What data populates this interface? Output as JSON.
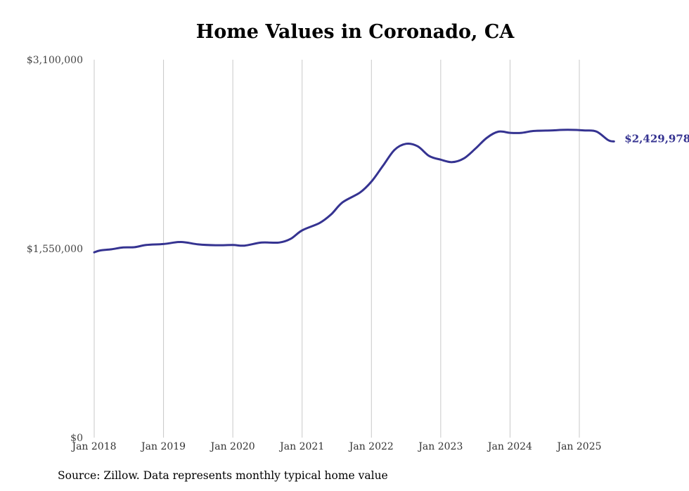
{
  "title": "Home Values in Coronado, CA",
  "source": "Source: Zillow. Data represents monthly typical home value",
  "colors": {
    "line": "#353391",
    "grid": "#c8c8c8",
    "end_label": "#353391"
  },
  "chart_data": {
    "type": "line",
    "title": "Home Values in Coronado, CA",
    "xlabel": "",
    "ylabel": "",
    "ylim": [
      0,
      3100000
    ],
    "y_ticks": [
      0,
      1550000,
      3100000
    ],
    "y_tick_labels": [
      "$0",
      "$1,550,000",
      "$3,100,000"
    ],
    "x_tick_labels": [
      "Jan 2018",
      "Jan 2019",
      "Jan 2020",
      "Jan 2021",
      "Jan 2022",
      "Jan 2023",
      "Jan 2024",
      "Jan 2025"
    ],
    "grid": "vertical",
    "legend": "none",
    "end_label": "$2,429,978",
    "series": [
      {
        "points": [
          [
            "2018-01",
            1520000
          ],
          [
            "2018-02",
            1535000
          ],
          [
            "2018-04",
            1545000
          ],
          [
            "2018-06",
            1560000
          ],
          [
            "2018-08",
            1562000
          ],
          [
            "2018-10",
            1580000
          ],
          [
            "2019-01",
            1588000
          ],
          [
            "2019-04",
            1605000
          ],
          [
            "2019-07",
            1585000
          ],
          [
            "2019-10",
            1578000
          ],
          [
            "2020-01",
            1580000
          ],
          [
            "2020-03",
            1575000
          ],
          [
            "2020-06",
            1600000
          ],
          [
            "2020-09",
            1600000
          ],
          [
            "2020-11",
            1630000
          ],
          [
            "2021-01",
            1700000
          ],
          [
            "2021-04",
            1760000
          ],
          [
            "2021-06",
            1830000
          ],
          [
            "2021-08",
            1930000
          ],
          [
            "2021-11",
            2010000
          ],
          [
            "2022-01",
            2100000
          ],
          [
            "2022-03",
            2230000
          ],
          [
            "2022-05",
            2360000
          ],
          [
            "2022-07",
            2410000
          ],
          [
            "2022-09",
            2390000
          ],
          [
            "2022-11",
            2310000
          ],
          [
            "2023-01",
            2280000
          ],
          [
            "2023-03",
            2260000
          ],
          [
            "2023-05",
            2290000
          ],
          [
            "2023-07",
            2370000
          ],
          [
            "2023-09",
            2460000
          ],
          [
            "2023-11",
            2510000
          ],
          [
            "2024-01",
            2500000
          ],
          [
            "2024-03",
            2500000
          ],
          [
            "2024-05",
            2515000
          ],
          [
            "2024-08",
            2520000
          ],
          [
            "2024-11",
            2525000
          ],
          [
            "2025-02",
            2520000
          ],
          [
            "2025-04",
            2510000
          ],
          [
            "2025-06",
            2440000
          ],
          [
            "2025-07",
            2429978
          ]
        ]
      }
    ]
  }
}
